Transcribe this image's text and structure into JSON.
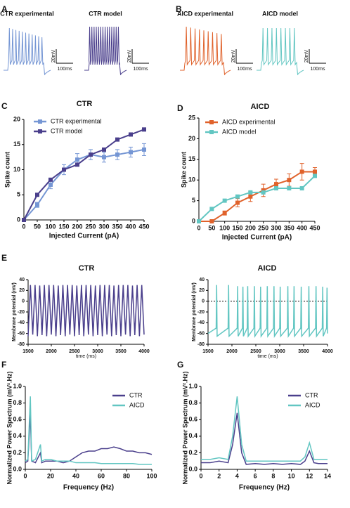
{
  "chart_data": [
    {
      "type": "trace",
      "panel": "A",
      "traces": [
        {
          "name": "CTR experimental",
          "color": "#7596d4",
          "scale_y_label": "20mV",
          "scale_x_label": "100ms"
        },
        {
          "name": "CTR model",
          "color": "#4a3f8c",
          "scale_y_label": "20mV",
          "scale_x_label": "100ms"
        }
      ]
    },
    {
      "type": "trace",
      "panel": "B",
      "traces": [
        {
          "name": "AICD experimental",
          "color": "#e0622b",
          "scale_y_label": "20mV",
          "scale_x_label": "100ms"
        },
        {
          "name": "AICD model",
          "color": "#62c6c2",
          "scale_y_label": "20mV",
          "scale_x_label": "100ms"
        }
      ]
    },
    {
      "type": "line",
      "panel": "C",
      "title": "CTR",
      "x_label": "Injected Current (pA)",
      "y_label": "Spike count",
      "x": [
        0,
        50,
        100,
        150,
        200,
        250,
        300,
        350,
        400,
        450
      ],
      "xlim": [
        0,
        450
      ],
      "xticks": [
        0,
        50,
        100,
        150,
        200,
        250,
        300,
        350,
        400,
        450
      ],
      "ylim": [
        0,
        20
      ],
      "yticks": [
        0,
        5,
        10,
        15,
        20
      ],
      "markers": true,
      "series": [
        {
          "name": "CTR experimental",
          "color": "#7596d4",
          "values": [
            0,
            3,
            7,
            10,
            12,
            13,
            12.5,
            13,
            13.5,
            14
          ],
          "errors": [
            0,
            0.5,
            0.8,
            1,
            1.2,
            1,
            1,
            1,
            1,
            1.2
          ]
        },
        {
          "name": "CTR model",
          "color": "#4a3f8c",
          "values": [
            0,
            5,
            8,
            10,
            11,
            13,
            14,
            16,
            17,
            18
          ]
        }
      ]
    },
    {
      "type": "line",
      "panel": "D",
      "title": "AICD",
      "x_label": "Injected Current (pA)",
      "y_label": "Spike count",
      "x": [
        0,
        50,
        100,
        150,
        200,
        250,
        300,
        350,
        400,
        450
      ],
      "xlim": [
        0,
        450
      ],
      "xticks": [
        0,
        50,
        100,
        150,
        200,
        250,
        300,
        350,
        400,
        450
      ],
      "ylim": [
        0,
        25
      ],
      "yticks": [
        0,
        5,
        10,
        15,
        20,
        25
      ],
      "markers": true,
      "series": [
        {
          "name": "AICD experimental",
          "color": "#e0622b",
          "values": [
            0,
            0,
            2,
            4.5,
            6,
            7.5,
            9,
            10,
            12,
            12
          ],
          "errors": [
            0,
            0,
            0.5,
            1,
            1.2,
            1.5,
            1.2,
            1.5,
            2,
            1
          ]
        },
        {
          "name": "AICD model",
          "color": "#62c6c2",
          "values": [
            0,
            3,
            5,
            6,
            7,
            7,
            8,
            8,
            8,
            11
          ]
        }
      ]
    },
    {
      "type": "line",
      "panel": "E",
      "title": "CTR",
      "x_label": "time (ms)",
      "y_label": "Membrane potential (mV)",
      "x": [
        1500,
        1550,
        1600,
        1650,
        1700,
        1750,
        1800,
        1850,
        1900,
        1950,
        2000,
        2050,
        2100,
        2150,
        2200,
        2250,
        2300,
        2350,
        2400,
        2450,
        2500,
        2550,
        2600,
        2650,
        2700,
        2750,
        2800,
        2850,
        2900,
        2950,
        3000,
        3050,
        3100,
        3150,
        3200,
        3250,
        3300,
        3350,
        3400,
        3450,
        3500,
        3550,
        3600,
        3650,
        3700,
        3750,
        3800,
        3850,
        3900,
        3950,
        4000
      ],
      "xlim": [
        1500,
        4000
      ],
      "xticks": [
        1500,
        2000,
        2500,
        3000,
        3500,
        4000
      ],
      "ylim": [
        -80,
        40
      ],
      "yticks": [
        -80,
        -60,
        -40,
        -20,
        0,
        20,
        40
      ],
      "series": [
        {
          "color": "#4a3f8c",
          "values": [
            -65,
            30,
            -62,
            30,
            -65,
            29,
            -63,
            30,
            -65,
            30,
            -62,
            30,
            -65,
            29,
            -63,
            30,
            -65,
            30,
            -62,
            30,
            -65,
            29,
            -63,
            30,
            -65,
            30,
            -62,
            30,
            -65,
            29,
            -63,
            30,
            -65,
            30,
            -62,
            30,
            -65,
            29,
            -63,
            30,
            -65,
            30,
            -62,
            30,
            -65,
            29,
            -63,
            30,
            -65,
            30,
            -62
          ]
        }
      ]
    },
    {
      "type": "line",
      "title": "AICD",
      "x_label": "time (ms)",
      "y_label": "Membrane potential (mV)",
      "x": [
        1500,
        1670,
        1680,
        1690,
        1920,
        1930,
        1940,
        2110,
        2120,
        2130,
        2220,
        2230,
        2240,
        2320,
        2330,
        2340,
        2460,
        2470,
        2480,
        2590,
        2600,
        2610,
        2730,
        2740,
        2750,
        2870,
        2880,
        2890,
        3000,
        3010,
        3020,
        3160,
        3170,
        3180,
        3290,
        3300,
        3310,
        3440,
        3450,
        3460,
        3600,
        3610,
        3620,
        3750,
        3760,
        3770,
        3890,
        3900,
        3910,
        3980,
        3990,
        4000
      ],
      "xlim": [
        1500,
        4000
      ],
      "xticks": [
        1500,
        2000,
        2500,
        3000,
        3500,
        4000
      ],
      "ylim": [
        -80,
        40
      ],
      "yticks": [
        -80,
        -60,
        -40,
        -20,
        0,
        20,
        40
      ],
      "hline": 0,
      "series": [
        {
          "color": "#62c6c2",
          "values": [
            -60,
            -50,
            30,
            -65,
            -50,
            30,
            -65,
            -50,
            28,
            -65,
            -50,
            27,
            -65,
            -50,
            28,
            -65,
            -50,
            28,
            -65,
            -50,
            27,
            -65,
            -50,
            28,
            -65,
            -50,
            28,
            -65,
            -50,
            27,
            -65,
            -50,
            28,
            -65,
            -50,
            28,
            -65,
            -50,
            27,
            -65,
            -50,
            28,
            -65,
            -50,
            28,
            -65,
            -50,
            27,
            -65,
            -50,
            25,
            -60
          ]
        }
      ]
    },
    {
      "type": "line",
      "panel": "F",
      "x_label": "Frequency (Hz)",
      "y_label": "Normalized Power Spectrum (mV².Hz)",
      "x": [
        0,
        2,
        4,
        5,
        8,
        12,
        13,
        16,
        20,
        25,
        30,
        35,
        40,
        45,
        50,
        55,
        60,
        65,
        70,
        75,
        80,
        85,
        90,
        95,
        100
      ],
      "xlim": [
        0,
        100
      ],
      "xticks": [
        0,
        20,
        40,
        60,
        80,
        100
      ],
      "ylim": [
        0,
        1
      ],
      "yticks": [
        {
          "value": 0,
          "label": "0.0"
        },
        0.2,
        0.4,
        0.6,
        0.8,
        {
          "value": 1,
          "label": "1.0"
        }
      ],
      "series": [
        {
          "name": "CTR",
          "color": "#4a3f8c",
          "values": [
            0.08,
            0.1,
            0.68,
            0.1,
            0.08,
            0.2,
            0.08,
            0.1,
            0.1,
            0.1,
            0.08,
            0.1,
            0.15,
            0.2,
            0.22,
            0.22,
            0.25,
            0.25,
            0.27,
            0.25,
            0.22,
            0.22,
            0.2,
            0.2,
            0.18
          ]
        },
        {
          "name": "AICD",
          "color": "#62c6c2",
          "values": [
            0.1,
            0.12,
            0.88,
            0.1,
            0.12,
            0.3,
            0.1,
            0.12,
            0.12,
            0.1,
            0.1,
            0.1,
            0.08,
            0.08,
            0.08,
            0.08,
            0.07,
            0.07,
            0.07,
            0.07,
            0.07,
            0.07,
            0.06,
            0.06,
            0.06
          ]
        }
      ]
    },
    {
      "type": "line",
      "panel": "G",
      "x_label": "Frequency (Hz)",
      "y_label": "Normalized Power Spectrum (mV².Hz)",
      "x": [
        0,
        1,
        2,
        3,
        3.5,
        4,
        4.5,
        5,
        6,
        7,
        8,
        9,
        10,
        11,
        11.5,
        12,
        12.5,
        13,
        14
      ],
      "xlim": [
        0,
        14
      ],
      "xticks": [
        0,
        2,
        4,
        6,
        8,
        10,
        12,
        14
      ],
      "ylim": [
        0,
        1
      ],
      "yticks": [
        {
          "value": 0,
          "label": "0.0"
        },
        0.2,
        0.4,
        0.6,
        0.8,
        {
          "value": 1,
          "label": "1.0"
        }
      ],
      "series": [
        {
          "name": "CTR",
          "color": "#4a3f8c",
          "values": [
            0.08,
            0.08,
            0.1,
            0.08,
            0.3,
            0.68,
            0.2,
            0.06,
            0.07,
            0.06,
            0.07,
            0.06,
            0.07,
            0.06,
            0.1,
            0.22,
            0.08,
            0.07,
            0.07
          ]
        },
        {
          "name": "AICD",
          "color": "#62c6c2",
          "values": [
            0.12,
            0.12,
            0.14,
            0.12,
            0.4,
            0.88,
            0.3,
            0.1,
            0.1,
            0.1,
            0.1,
            0.1,
            0.1,
            0.1,
            0.15,
            0.32,
            0.12,
            0.12,
            0.12
          ]
        }
      ]
    }
  ]
}
